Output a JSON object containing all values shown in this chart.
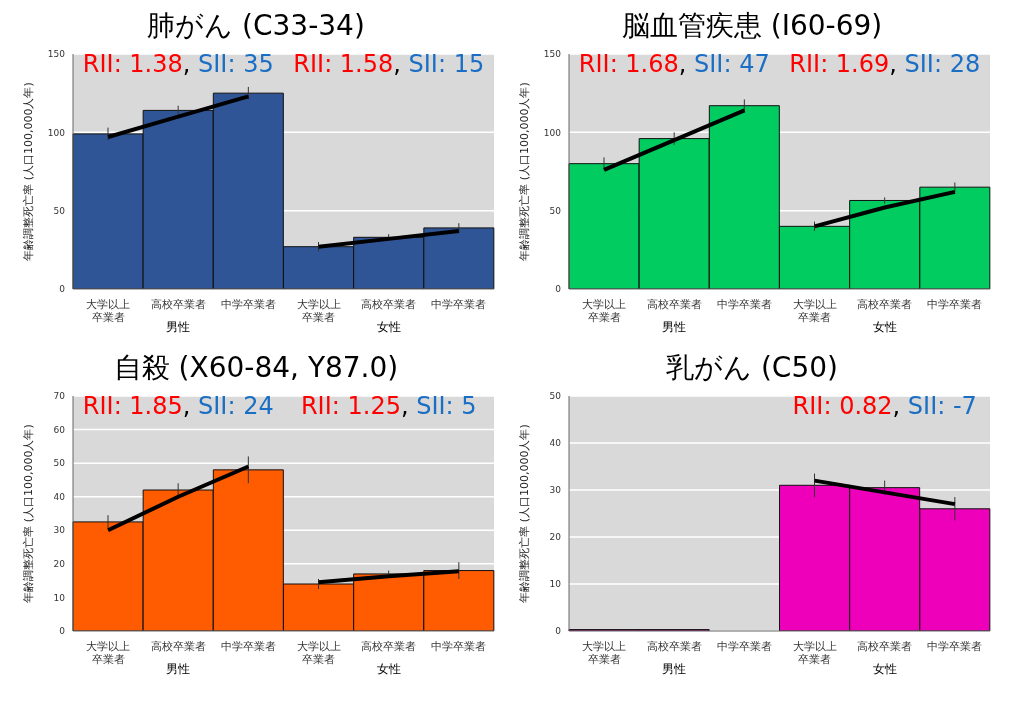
{
  "chart_data": [
    {
      "type": "bar",
      "title": "肺がん (C33-34)",
      "ylabel": "年齢調整死亡率 (人口100,000人年)",
      "categories": [
        "大学以上卒業者",
        "高校卒業者",
        "中学卒業者",
        "大学以上卒業者",
        "高校卒業者",
        "中学卒業者"
      ],
      "series": [
        {
          "color": "#2f5597",
          "values": [
            99,
            114,
            125,
            27,
            33,
            39
          ],
          "errors": [
            4,
            3,
            4,
            3,
            2,
            3
          ]
        },
        {
          "type": "line",
          "color": "#000000",
          "values": [
            97,
            110,
            123,
            null,
            null,
            null
          ]
        },
        {
          "type": "line",
          "color": "#000000",
          "values": [
            null,
            null,
            null,
            27,
            32,
            37
          ]
        }
      ],
      "ylim": [
        0,
        150
      ],
      "yticks": [
        0,
        50,
        100,
        150
      ],
      "grid": "y",
      "legend": false,
      "annotations": [
        "RII: 1.38, SII: 35",
        "RII: 1.58, SII: 15",
        "男性",
        "女性"
      ]
    },
    {
      "type": "bar",
      "title": "脳血管疾患 (I60-69)",
      "ylabel": "年齢調整死亡率 (人口100,000人年)",
      "categories": [
        "大学以上卒業者",
        "高校卒業者",
        "中学卒業者",
        "大学以上卒業者",
        "高校卒業者",
        "中学卒業者"
      ],
      "series": [
        {
          "color": "#00cc5f",
          "values": [
            80,
            96,
            117,
            40,
            56.5,
            65
          ],
          "errors": [
            4,
            4,
            4,
            3,
            2,
            3
          ]
        },
        {
          "type": "line",
          "color": "#000000",
          "values": [
            76,
            95,
            114,
            null,
            null,
            null
          ]
        },
        {
          "type": "line",
          "color": "#000000",
          "values": [
            null,
            null,
            null,
            40,
            52,
            62
          ]
        }
      ],
      "ylim": [
        0,
        150
      ],
      "yticks": [
        0,
        50,
        100,
        150
      ],
      "grid": "y",
      "legend": false,
      "annotations": [
        "RII: 1.68, SII: 47",
        "RII: 1.69, SII: 28",
        "男性",
        "女性"
      ]
    },
    {
      "type": "bar",
      "title": "自殺 (X60-84, Y87.0)",
      "ylabel": "年齢調整死亡率 (人口100,000人年)",
      "categories": [
        "大学以上卒業者",
        "高校卒業者",
        "中学卒業者",
        "大学以上卒業者",
        "高校卒業者",
        "中学卒業者"
      ],
      "series": [
        {
          "color": "#ff5b00",
          "values": [
            32.5,
            42,
            48,
            14,
            17,
            18
          ],
          "errors": [
            2,
            2,
            4,
            1.5,
            1,
            2.5
          ]
        },
        {
          "type": "line",
          "color": "#000000",
          "values": [
            30,
            40,
            49,
            null,
            null,
            null
          ]
        },
        {
          "type": "line",
          "color": "#000000",
          "values": [
            null,
            null,
            null,
            14.5,
            16.3,
            17.8
          ]
        }
      ],
      "ylim": [
        0,
        70
      ],
      "yticks": [
        0,
        10,
        20,
        30,
        40,
        50,
        60,
        70
      ],
      "grid": "y",
      "legend": false,
      "annotations": [
        "RII: 1.85, SII: 24",
        "RII: 1.25, SII: 5",
        "男性",
        "女性"
      ]
    },
    {
      "type": "bar",
      "title": "乳がん (C50)",
      "ylabel": "年齢調整死亡率 (人口100,000人年)",
      "categories": [
        "大学以上卒業者",
        "高校卒業者",
        "中学卒業者",
        "大学以上卒業者",
        "高校卒業者",
        "中学卒業者"
      ],
      "series": [
        {
          "color": "#ee00bb",
          "values": [
            0.3,
            0.3,
            0,
            31,
            30.5,
            26
          ],
          "errors": [
            null,
            null,
            null,
            2.5,
            1.5,
            2.5
          ]
        },
        {
          "type": "line",
          "color": "#000000",
          "values": [
            null,
            null,
            null,
            32,
            29.5,
            27
          ]
        }
      ],
      "ylim": [
        0,
        50
      ],
      "yticks": [
        0,
        10,
        20,
        30,
        40,
        50
      ],
      "grid": "y",
      "legend": false,
      "annotations": [
        "RII: 0.82, SII: -7",
        "男性",
        "女性"
      ]
    }
  ]
}
